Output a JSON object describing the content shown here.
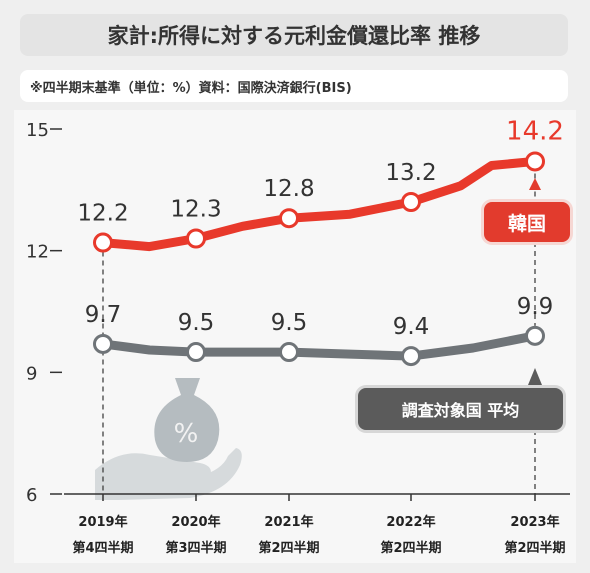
{
  "title": "家計:所得に対する元利金償還比率 推移",
  "note": "※四半期末基準（単位：%）資料：国際決済銀行(BIS)",
  "chart_data": {
    "type": "line",
    "categories": [
      [
        "2019年",
        "第4四半期"
      ],
      [
        "2020年",
        "第3四半期"
      ],
      [
        "2021年",
        "第2四半期"
      ],
      [
        "2022年",
        "第2四半期"
      ],
      [
        "2023年",
        "第2四半期"
      ]
    ],
    "y_ticks": [
      "15",
      "12",
      "9",
      "6"
    ],
    "ylim": [
      6,
      15
    ],
    "series": [
      {
        "name": "韓国",
        "color": "#e8392b",
        "labels": [
          "12.2",
          "12.3",
          "12.8",
          "13.2",
          "14.2"
        ],
        "points": [
          {
            "x": 0,
            "y": 12.2
          },
          {
            "x": 0.5,
            "y": 12.1
          },
          {
            "x": 1,
            "y": 12.3
          },
          {
            "x": 1.5,
            "y": 12.6
          },
          {
            "x": 2,
            "y": 12.8
          },
          {
            "x": 2.5,
            "y": 12.9
          },
          {
            "x": 3,
            "y": 13.2
          },
          {
            "x": 3.4,
            "y": 13.6
          },
          {
            "x": 3.65,
            "y": 14.1
          },
          {
            "x": 4,
            "y": 14.2
          }
        ]
      },
      {
        "name": "調査対象国 平均",
        "color": "#6f7478",
        "labels": [
          "9.7",
          "9.5",
          "9.5",
          "9.4",
          "9.9"
        ],
        "points": [
          {
            "x": 0,
            "y": 9.7
          },
          {
            "x": 0.5,
            "y": 9.55
          },
          {
            "x": 1,
            "y": 9.5
          },
          {
            "x": 1.5,
            "y": 9.5
          },
          {
            "x": 2,
            "y": 9.5
          },
          {
            "x": 2.5,
            "y": 9.45
          },
          {
            "x": 3,
            "y": 9.4
          },
          {
            "x": 3.5,
            "y": 9.6
          },
          {
            "x": 4,
            "y": 9.9
          }
        ]
      }
    ],
    "markers": [
      {
        "series": 0,
        "indices": [
          0,
          2,
          4,
          6,
          9
        ]
      },
      {
        "series": 1,
        "indices": [
          0,
          2,
          4,
          6,
          8
        ]
      }
    ],
    "badges": {
      "korea": "韓国",
      "average": "調査対象国 平均"
    },
    "icon": "money-bag-hand-icon",
    "percent_symbol": "%"
  }
}
